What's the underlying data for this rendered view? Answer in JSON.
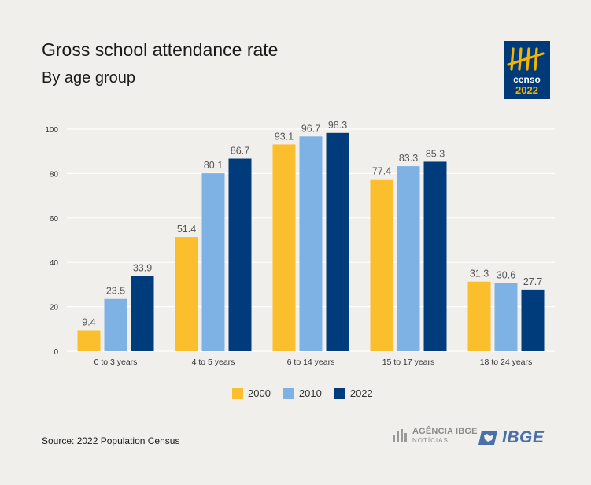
{
  "header": {
    "title": "Gross school attendance rate",
    "subtitle": "By age group"
  },
  "logos": {
    "censo_word": "censo",
    "censo_year": "2022",
    "agencia_main": "AGÊNCIA IBGE",
    "agencia_sub": "NOTÍCIAS",
    "ibge": "IBGE"
  },
  "footer": {
    "source": "Source: 2022 Population Census"
  },
  "colors": {
    "series_2000": "#fbbe2c",
    "series_2010": "#7fb2e4",
    "series_2022": "#003c7c",
    "gridline": "#ffffff",
    "label": "#555555",
    "logo_bg": "#003a78",
    "logo_accent": "#f5b400"
  },
  "chart_data": {
    "type": "bar",
    "categories": [
      "0 to 3 years",
      "4 to 5 years",
      "6 to 14 years",
      "15 to 17 years",
      "18 to 24 years"
    ],
    "series": [
      {
        "name": "2000",
        "values": [
          9.4,
          51.4,
          93.1,
          77.4,
          31.3
        ]
      },
      {
        "name": "2010",
        "values": [
          23.5,
          80.1,
          96.7,
          83.3,
          30.6
        ]
      },
      {
        "name": "2022",
        "values": [
          33.9,
          86.7,
          98.3,
          85.3,
          27.7
        ]
      }
    ],
    "ylim": [
      0,
      100
    ],
    "yticks": [
      0,
      20,
      40,
      60,
      80,
      100
    ],
    "grid": true,
    "legend_position": "bottom",
    "data_labels": true
  }
}
